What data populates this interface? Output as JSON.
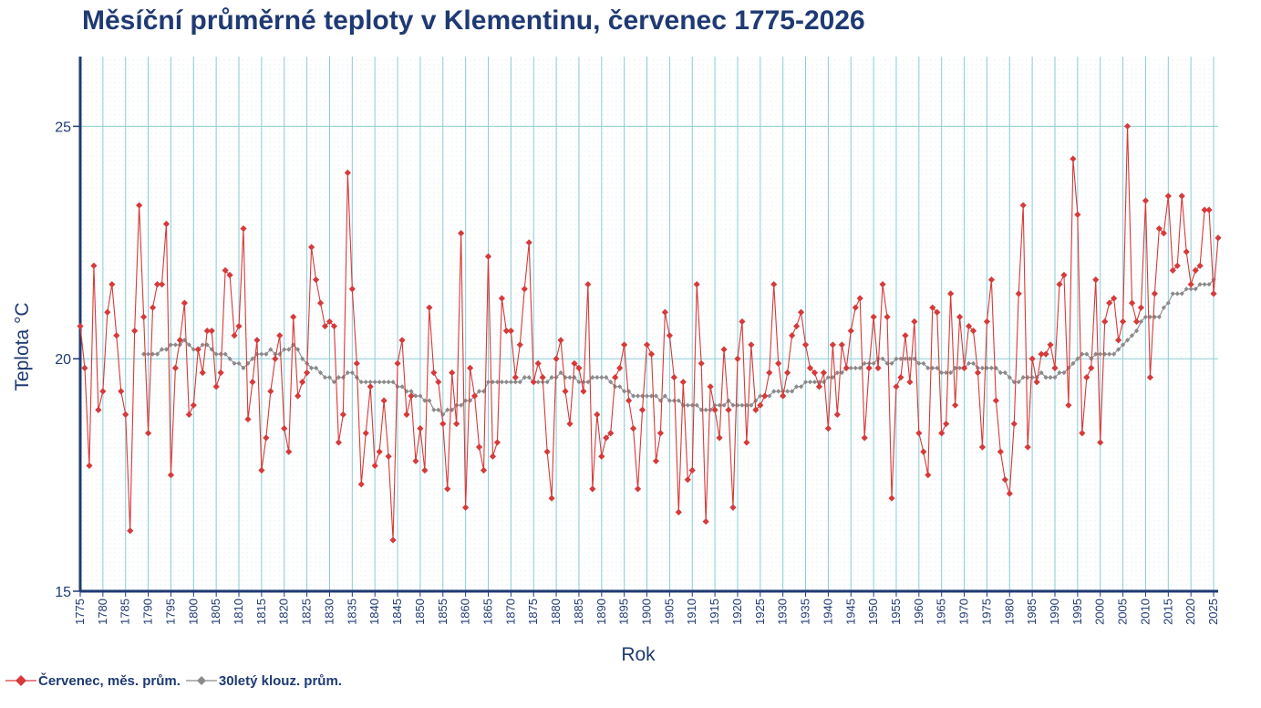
{
  "chart_data": {
    "type": "line",
    "title": "Měsíční průměrné teploty v Klementinu, červenec 1775-2026",
    "xlabel": "Rok",
    "ylabel": "Teplota  °C",
    "xlim": [
      1775,
      2026
    ],
    "ylim": [
      15,
      26.5
    ],
    "yticks": [
      15,
      20,
      25
    ],
    "xticks": [
      1775,
      1780,
      1785,
      1790,
      1795,
      1800,
      1805,
      1810,
      1815,
      1820,
      1825,
      1830,
      1835,
      1840,
      1845,
      1850,
      1855,
      1860,
      1865,
      1870,
      1875,
      1880,
      1885,
      1890,
      1895,
      1900,
      1905,
      1910,
      1915,
      1920,
      1925,
      1930,
      1935,
      1940,
      1945,
      1950,
      1955,
      1960,
      1965,
      1970,
      1975,
      1980,
      1985,
      1990,
      1995,
      2000,
      2005,
      2010,
      2015,
      2020,
      2025
    ],
    "grid": true,
    "legend_position": "bottom-left",
    "colors": {
      "monthly": "#d63a3a",
      "rolling": "#8a8a8a",
      "axis": "#1f3a73",
      "grid": "#8ccbd6"
    },
    "series": [
      {
        "name": "Červenec, měs. prům.",
        "x_start": 1775,
        "values": [
          20.7,
          19.8,
          17.7,
          22.0,
          18.9,
          19.3,
          21.0,
          21.6,
          20.5,
          19.3,
          18.8,
          16.3,
          20.6,
          23.3,
          20.9,
          18.4,
          21.1,
          21.6,
          21.6,
          22.9,
          17.5,
          19.8,
          20.4,
          21.2,
          18.8,
          19.0,
          20.2,
          19.7,
          20.6,
          20.6,
          19.4,
          19.7,
          21.9,
          21.8,
          20.5,
          20.7,
          22.8,
          18.7,
          19.5,
          20.4,
          17.6,
          18.3,
          19.3,
          20.0,
          20.5,
          18.5,
          18.0,
          20.9,
          19.2,
          19.5,
          19.7,
          22.4,
          21.7,
          21.2,
          20.7,
          20.8,
          20.7,
          18.2,
          18.8,
          24.0,
          21.5,
          19.9,
          17.3,
          18.4,
          19.4,
          17.7,
          18.0,
          19.1,
          17.9,
          16.1,
          19.9,
          20.4,
          18.8,
          19.2,
          17.8,
          18.5,
          17.6,
          21.1,
          19.7,
          19.5,
          18.6,
          17.2,
          19.7,
          18.6,
          22.7,
          16.8,
          19.8,
          19.2,
          18.1,
          17.6,
          22.2,
          17.9,
          18.2,
          21.3,
          20.6,
          20.6,
          19.6,
          20.3,
          21.5,
          22.5,
          19.5,
          19.9,
          19.6,
          18.0,
          17.0,
          20.0,
          20.4,
          19.3,
          18.6,
          19.9,
          19.8,
          19.3,
          21.6,
          17.2,
          18.8,
          17.9,
          18.3,
          18.4,
          19.6,
          19.8,
          20.3,
          19.1,
          18.5,
          17.2,
          18.9,
          20.3,
          20.1,
          17.8,
          18.4,
          21.0,
          20.5,
          19.6,
          16.7,
          19.5,
          17.4,
          17.6,
          21.6,
          19.9,
          16.5,
          19.4,
          18.9,
          18.3,
          20.2,
          18.9,
          16.8,
          20.0,
          20.8,
          18.2,
          20.3,
          18.9,
          19.0,
          19.2,
          19.7,
          21.6,
          19.9,
          19.2,
          19.7,
          20.5,
          20.7,
          21.0,
          20.3,
          19.8,
          19.7,
          19.4,
          19.7,
          18.5,
          20.3,
          18.8,
          20.3,
          19.8,
          20.6,
          21.1,
          21.3,
          18.3,
          19.8,
          20.9,
          19.8,
          21.6,
          20.9,
          17.0,
          19.4,
          19.6,
          20.5,
          19.5,
          20.8,
          18.4,
          18.0,
          17.5,
          21.1,
          21.0,
          18.4,
          18.6,
          21.4,
          19.0,
          20.9,
          19.8,
          20.7,
          20.6,
          19.7,
          18.1,
          20.8,
          21.7,
          19.1,
          18.0,
          17.4,
          17.1,
          18.6,
          21.4,
          23.3,
          18.1,
          20.0,
          19.5,
          20.1,
          20.1,
          20.3,
          19.8,
          21.6,
          21.8,
          19.0,
          24.3,
          23.1,
          18.4,
          19.6,
          19.8,
          21.7,
          18.2,
          20.8,
          21.2,
          21.3,
          20.4,
          20.8,
          25.0,
          21.2,
          20.8,
          21.1,
          23.4,
          19.6,
          21.4,
          22.8,
          22.7,
          23.5,
          21.9,
          22.0,
          23.5,
          22.3,
          21.6,
          21.9,
          22.0,
          23.2,
          23.2,
          21.4,
          22.6
        ]
      },
      {
        "name": "30letý klouz. prům.",
        "x_start": 1789,
        "values": [
          20.1,
          20.1,
          20.1,
          20.1,
          20.2,
          20.2,
          20.3,
          20.3,
          20.3,
          20.4,
          20.3,
          20.2,
          20.2,
          20.3,
          20.3,
          20.2,
          20.1,
          20.1,
          20.1,
          20.0,
          19.9,
          19.9,
          19.8,
          19.9,
          20.0,
          20.1,
          20.1,
          20.1,
          20.2,
          20.1,
          20.1,
          20.2,
          20.2,
          20.3,
          20.2,
          20.0,
          19.9,
          19.8,
          19.8,
          19.7,
          19.6,
          19.6,
          19.5,
          19.6,
          19.6,
          19.7,
          19.7,
          19.6,
          19.5,
          19.5,
          19.5,
          19.5,
          19.5,
          19.5,
          19.5,
          19.5,
          19.4,
          19.4,
          19.3,
          19.3,
          19.2,
          19.2,
          19.1,
          19.1,
          18.9,
          18.9,
          18.8,
          18.9,
          18.9,
          19.0,
          19.0,
          19.1,
          19.1,
          19.2,
          19.3,
          19.3,
          19.5,
          19.5,
          19.5,
          19.5,
          19.5,
          19.5,
          19.5,
          19.5,
          19.6,
          19.6,
          19.5,
          19.5,
          19.5,
          19.5,
          19.6,
          19.6,
          19.7,
          19.6,
          19.6,
          19.6,
          19.5,
          19.5,
          19.5,
          19.6,
          19.6,
          19.6,
          19.6,
          19.5,
          19.4,
          19.4,
          19.3,
          19.3,
          19.2,
          19.2,
          19.2,
          19.2,
          19.2,
          19.2,
          19.1,
          19.2,
          19.1,
          19.1,
          19.1,
          19.0,
          19.0,
          19.0,
          19.0,
          18.9,
          18.9,
          18.9,
          19.0,
          19.0,
          19.0,
          19.1,
          19.0,
          19.0,
          19.0,
          19.0,
          19.0,
          19.1,
          19.2,
          19.2,
          19.2,
          19.3,
          19.3,
          19.3,
          19.3,
          19.3,
          19.4,
          19.4,
          19.5,
          19.5,
          19.5,
          19.5,
          19.5,
          19.6,
          19.6,
          19.7,
          19.7,
          19.8,
          19.8,
          19.8,
          19.8,
          19.9,
          19.9,
          19.9,
          20.0,
          20.0,
          19.9,
          19.9,
          20.0,
          20.0,
          20.0,
          20.0,
          20.0,
          19.9,
          19.9,
          19.8,
          19.8,
          19.8,
          19.7,
          19.7,
          19.7,
          19.8,
          19.8,
          19.8,
          19.9,
          19.9,
          19.8,
          19.8,
          19.8,
          19.8,
          19.8,
          19.7,
          19.7,
          19.6,
          19.5,
          19.5,
          19.6,
          19.6,
          19.6,
          19.6,
          19.7,
          19.6,
          19.6,
          19.6,
          19.7,
          19.7,
          19.8,
          19.9,
          20.0,
          20.1,
          20.1,
          20.0,
          20.1,
          20.1,
          20.1,
          20.1,
          20.1,
          20.2,
          20.3,
          20.4,
          20.5,
          20.6,
          20.8,
          20.9,
          20.9,
          20.9,
          20.9,
          21.1,
          21.2,
          21.4,
          21.4,
          21.4,
          21.5,
          21.5,
          21.5,
          21.6,
          21.6,
          21.6,
          21.7
        ]
      }
    ]
  }
}
